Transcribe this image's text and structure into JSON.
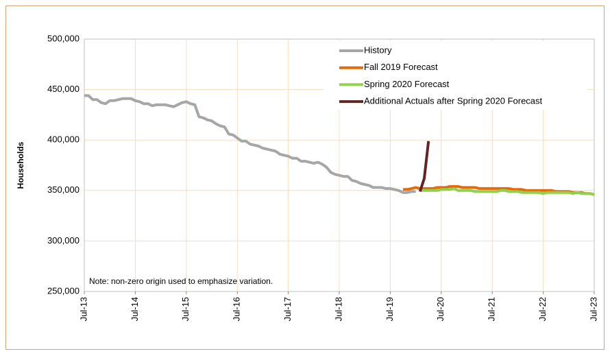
{
  "chart_data": {
    "type": "line",
    "y_label": "Households",
    "annotation": "Note: non-zero origin used to emphasize variation.",
    "categories": [
      "Jul-13",
      null,
      null,
      null,
      null,
      null,
      null,
      null,
      null,
      null,
      null,
      null,
      "Jul-14",
      null,
      null,
      null,
      null,
      null,
      null,
      null,
      null,
      null,
      null,
      null,
      "Jul-15",
      null,
      null,
      null,
      null,
      null,
      null,
      null,
      null,
      null,
      null,
      null,
      "Jul-16",
      null,
      null,
      null,
      null,
      null,
      null,
      null,
      null,
      null,
      null,
      null,
      "Jul-17",
      null,
      null,
      null,
      null,
      null,
      null,
      null,
      null,
      null,
      null,
      null,
      "Jul-18",
      null,
      null,
      null,
      null,
      null,
      null,
      null,
      null,
      null,
      null,
      null,
      "Jul-19",
      null,
      null,
      null,
      null,
      null,
      null,
      null,
      null,
      null,
      null,
      null,
      "Jul-20",
      null,
      null,
      null,
      null,
      null,
      null,
      null,
      null,
      null,
      null,
      null,
      "Jul-21",
      null,
      null,
      null,
      null,
      null,
      null,
      null,
      null,
      null,
      null,
      null,
      "Jul-22",
      null,
      null,
      null,
      null,
      null,
      null,
      null,
      null,
      null,
      null,
      null,
      "Jul-23"
    ],
    "series": [
      {
        "name": "History",
        "color": "#a6a6a6",
        "values": [
          444000,
          444000,
          440000,
          440000,
          437000,
          436000,
          439000,
          439000,
          440000,
          441000,
          441000,
          441000,
          439000,
          438000,
          436000,
          436000,
          434000,
          435000,
          435000,
          435000,
          434000,
          433000,
          435000,
          437000,
          438000,
          436000,
          435000,
          423000,
          422000,
          420000,
          419000,
          416000,
          414000,
          413000,
          406000,
          405000,
          402000,
          399000,
          399000,
          396000,
          395000,
          394000,
          392000,
          391000,
          390000,
          389000,
          386000,
          385000,
          384000,
          382000,
          382000,
          379000,
          379000,
          378000,
          377000,
          378000,
          376000,
          373000,
          368000,
          366000,
          365000,
          364000,
          364000,
          360000,
          359000,
          357000,
          356000,
          355000,
          353000,
          353000,
          353000,
          352000,
          352000,
          351000,
          350000,
          348000,
          348000,
          349000,
          349000,
          null,
          null,
          null,
          null,
          null,
          null,
          null,
          null,
          null,
          null,
          null,
          null,
          null,
          null,
          null,
          null,
          null,
          null,
          null,
          null,
          null,
          null,
          null,
          null,
          null,
          null,
          null,
          null,
          null,
          null,
          null,
          null,
          null,
          null,
          null,
          null,
          null,
          null,
          null,
          null,
          null,
          null
        ]
      },
      {
        "name": "Fall 2019 Forecast",
        "color": "#e36c0a",
        "values": [
          null,
          null,
          null,
          null,
          null,
          null,
          null,
          null,
          null,
          null,
          null,
          null,
          null,
          null,
          null,
          null,
          null,
          null,
          null,
          null,
          null,
          null,
          null,
          null,
          null,
          null,
          null,
          null,
          null,
          null,
          null,
          null,
          null,
          null,
          null,
          null,
          null,
          null,
          null,
          null,
          null,
          null,
          null,
          null,
          null,
          null,
          null,
          null,
          null,
          null,
          null,
          null,
          null,
          null,
          null,
          null,
          null,
          null,
          null,
          null,
          null,
          null,
          null,
          null,
          null,
          null,
          null,
          null,
          null,
          null,
          null,
          null,
          null,
          null,
          null,
          351000,
          351000,
          352000,
          353000,
          352000,
          352000,
          352000,
          352000,
          353000,
          353000,
          353000,
          354000,
          354000,
          354000,
          353000,
          353000,
          353000,
          353000,
          352000,
          352000,
          352000,
          352000,
          352000,
          352000,
          352000,
          352000,
          351000,
          351000,
          351000,
          350000,
          350000,
          350000,
          350000,
          350000,
          350000,
          350000,
          349000,
          349000,
          349000,
          349000,
          348000,
          348000,
          348000,
          347000,
          347000,
          346000
        ]
      },
      {
        "name": "Spring 2020 Forecast",
        "color": "#92d050",
        "values": [
          null,
          null,
          null,
          null,
          null,
          null,
          null,
          null,
          null,
          null,
          null,
          null,
          null,
          null,
          null,
          null,
          null,
          null,
          null,
          null,
          null,
          null,
          null,
          null,
          null,
          null,
          null,
          null,
          null,
          null,
          null,
          null,
          null,
          null,
          null,
          null,
          null,
          null,
          null,
          null,
          null,
          null,
          null,
          null,
          null,
          null,
          null,
          null,
          null,
          null,
          null,
          null,
          null,
          null,
          null,
          null,
          null,
          null,
          null,
          null,
          null,
          null,
          null,
          null,
          null,
          null,
          null,
          null,
          null,
          null,
          null,
          null,
          null,
          null,
          null,
          null,
          null,
          null,
          null,
          350000,
          350000,
          350000,
          350000,
          350000,
          351000,
          351000,
          351000,
          352000,
          350000,
          350000,
          350000,
          350000,
          349000,
          349000,
          349000,
          349000,
          349000,
          349000,
          350000,
          350000,
          349000,
          349000,
          349000,
          348000,
          348000,
          348000,
          348000,
          348000,
          347000,
          348000,
          348000,
          348000,
          348000,
          348000,
          348000,
          347000,
          348000,
          347000,
          347000,
          347000,
          346000
        ]
      },
      {
        "name": "Additional Actuals after Spring 2020 Forecast",
        "color": "#632523",
        "values": [
          null,
          null,
          null,
          null,
          null,
          null,
          null,
          null,
          null,
          null,
          null,
          null,
          null,
          null,
          null,
          null,
          null,
          null,
          null,
          null,
          null,
          null,
          null,
          null,
          null,
          null,
          null,
          null,
          null,
          null,
          null,
          null,
          null,
          null,
          null,
          null,
          null,
          null,
          null,
          null,
          null,
          null,
          null,
          null,
          null,
          null,
          null,
          null,
          null,
          null,
          null,
          null,
          null,
          null,
          null,
          null,
          null,
          null,
          null,
          null,
          null,
          null,
          null,
          null,
          null,
          null,
          null,
          null,
          null,
          null,
          null,
          null,
          null,
          null,
          null,
          null,
          null,
          null,
          null,
          349000,
          362000,
          399000,
          null,
          null,
          null,
          null,
          null,
          null,
          null,
          null,
          null,
          null,
          null,
          null,
          null,
          null,
          null,
          null,
          null,
          null,
          null,
          null,
          null,
          null,
          null,
          null,
          null,
          null,
          null,
          null,
          null,
          null,
          null,
          null,
          null,
          null,
          null,
          null,
          null,
          null,
          null
        ]
      }
    ],
    "ylim": [
      250000,
      500000
    ],
    "yticks": [
      {
        "value": 250000,
        "label": "250,000"
      },
      {
        "value": 300000,
        "label": "300,000"
      },
      {
        "value": 350000,
        "label": "350,000"
      },
      {
        "value": 400000,
        "label": "400,000"
      },
      {
        "value": 450000,
        "label": "450,000"
      },
      {
        "value": 500000,
        "label": "500,000"
      }
    ],
    "grid": true,
    "grid_color": "#f8dcc0",
    "legend": "upper right"
  }
}
